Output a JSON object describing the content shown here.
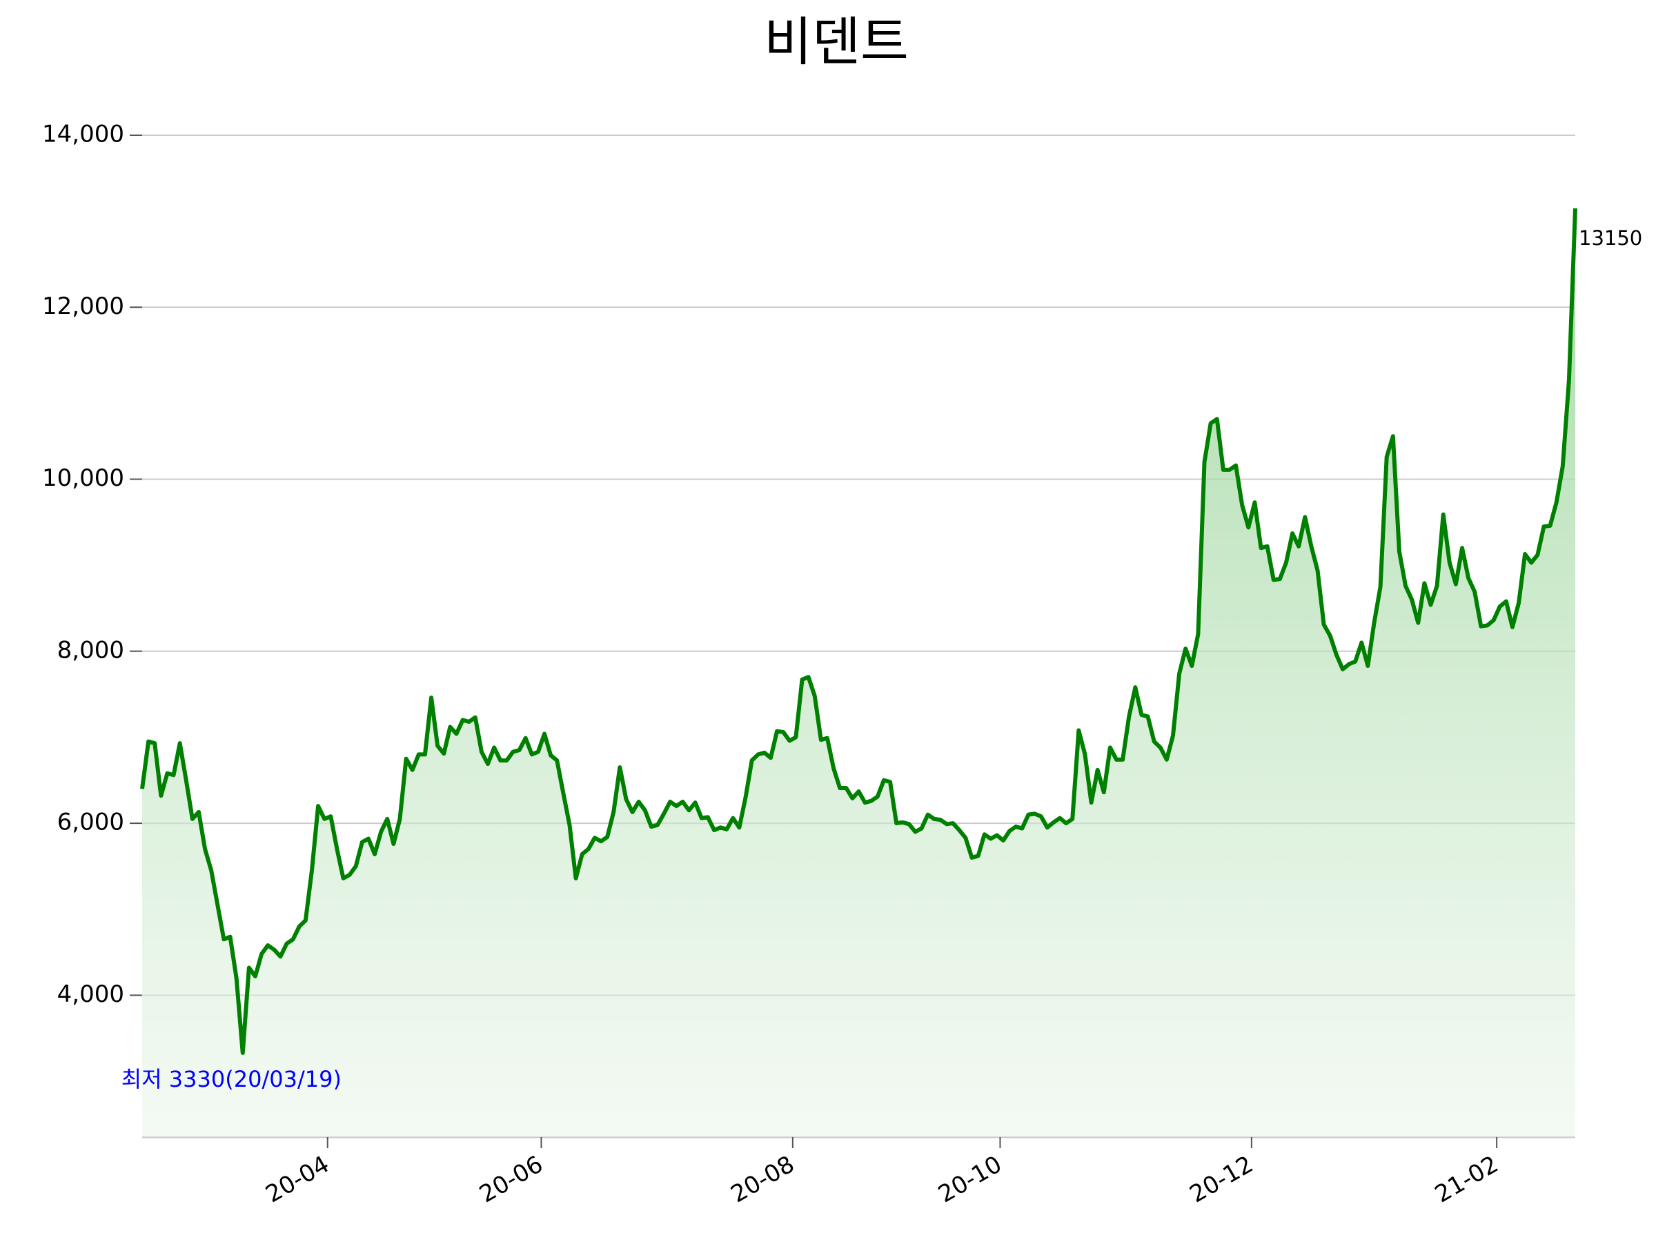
{
  "chart_data": {
    "type": "line",
    "title": "비덴트",
    "x": [
      "20-02",
      "20-02",
      "20-02",
      "20-02",
      "20-02",
      "20-02",
      "20-02",
      "20-02",
      "20-02",
      "20-03",
      "20-03",
      "20-03",
      "20-03",
      "20-03",
      "20-03",
      "20-03",
      "20-03",
      "20-03",
      "20-03",
      "20-03",
      "20-03",
      "20-03",
      "20-03",
      "20-03",
      "20-03",
      "20-03",
      "20-03",
      "20-03",
      "20-03",
      "20-03",
      "20-04",
      "20-04",
      "20-04",
      "20-04",
      "20-04",
      "20-04",
      "20-04",
      "20-04",
      "20-04",
      "20-04",
      "20-04",
      "20-04",
      "20-04",
      "20-04",
      "20-04",
      "20-04",
      "20-04",
      "20-05",
      "20-05",
      "20-05",
      "20-05",
      "20-05",
      "20-05",
      "20-05",
      "20-05",
      "20-05",
      "20-05",
      "20-05",
      "20-05",
      "20-05",
      "20-05",
      "20-05",
      "20-05",
      "20-05",
      "20-06",
      "20-06",
      "20-06",
      "20-06",
      "20-06",
      "20-06",
      "20-06",
      "20-06",
      "20-06",
      "20-06",
      "20-06",
      "20-06",
      "20-06",
      "20-06",
      "20-06",
      "20-06",
      "20-06",
      "20-06",
      "20-06",
      "20-06",
      "20-06",
      "20-07",
      "20-07",
      "20-07",
      "20-07",
      "20-07",
      "20-07",
      "20-07",
      "20-07",
      "20-07",
      "20-07",
      "20-07",
      "20-07",
      "20-07",
      "20-07",
      "20-07",
      "20-07",
      "20-07",
      "20-07",
      "20-07",
      "20-08",
      "20-08",
      "20-08",
      "20-08",
      "20-08",
      "20-08",
      "20-08",
      "20-08",
      "20-08",
      "20-08",
      "20-08",
      "20-08",
      "20-08",
      "20-08",
      "20-08",
      "20-08",
      "20-08",
      "20-09",
      "20-09",
      "20-09",
      "20-09",
      "20-09",
      "20-09",
      "20-09",
      "20-09",
      "20-09",
      "20-09",
      "20-09",
      "20-09",
      "20-09",
      "20-09",
      "20-09",
      "20-09",
      "20-10",
      "20-10",
      "20-10",
      "20-10",
      "20-10",
      "20-10",
      "20-10",
      "20-10",
      "20-10",
      "20-10",
      "20-10",
      "20-10",
      "20-10",
      "20-10",
      "20-10",
      "20-10",
      "20-10",
      "20-10",
      "20-10",
      "20-11",
      "20-11",
      "20-11",
      "20-11",
      "20-11",
      "20-11",
      "20-11",
      "20-11",
      "20-11",
      "20-11",
      "20-11",
      "20-11",
      "20-11",
      "20-11",
      "20-11",
      "20-11",
      "20-11",
      "20-11",
      "20-11",
      "20-11",
      "20-11",
      "20-12",
      "20-12",
      "20-12",
      "20-12",
      "20-12",
      "20-12",
      "20-12",
      "20-12",
      "20-12",
      "20-12",
      "20-12",
      "20-12",
      "20-12",
      "20-12",
      "20-12",
      "20-12",
      "20-12",
      "21-01",
      "21-01",
      "21-01",
      "21-01",
      "21-01",
      "21-01",
      "21-01",
      "21-01",
      "21-01",
      "21-01",
      "21-01",
      "21-01",
      "21-01",
      "21-01",
      "21-01",
      "21-01",
      "21-01",
      "21-01",
      "21-01",
      "21-01",
      "21-01",
      "21-01",
      "21-02",
      "21-02",
      "21-02",
      "21-02",
      "21-02",
      "21-02",
      "21-02",
      "21-02",
      "21-02",
      "21-02",
      "21-02",
      "21-02",
      "21-02"
    ],
    "series": [
      {
        "color": "#008000",
        "values": [
          6400,
          6950,
          6930,
          6320,
          6580,
          6560,
          6930,
          6500,
          6050,
          6130,
          5700,
          5450,
          5050,
          4650,
          4680,
          4200,
          3330,
          4320,
          4220,
          4480,
          4580,
          4530,
          4450,
          4600,
          4650,
          4800,
          4870,
          5450,
          6200,
          6050,
          6080,
          5700,
          5360,
          5400,
          5500,
          5780,
          5820,
          5640,
          5900,
          6050,
          5760,
          6050,
          6750,
          6620,
          6800,
          6800,
          7460,
          6900,
          6810,
          7120,
          7040,
          7200,
          7180,
          7230,
          6830,
          6690,
          6880,
          6730,
          6730,
          6830,
          6850,
          6990,
          6800,
          6830,
          7040,
          6790,
          6730,
          6350,
          5980,
          5360,
          5640,
          5700,
          5830,
          5790,
          5840,
          6130,
          6650,
          6280,
          6130,
          6250,
          6150,
          5960,
          5980,
          6110,
          6250,
          6200,
          6250,
          6150,
          6240,
          6060,
          6070,
          5920,
          5950,
          5930,
          6060,
          5950,
          6300,
          6730,
          6800,
          6820,
          6760,
          7070,
          7060,
          6960,
          7000,
          7670,
          7700,
          7480,
          6970,
          6990,
          6640,
          6410,
          6410,
          6290,
          6370,
          6240,
          6260,
          6310,
          6500,
          6480,
          6000,
          6010,
          5990,
          5900,
          5940,
          6100,
          6050,
          6040,
          5990,
          6000,
          5920,
          5830,
          5600,
          5620,
          5870,
          5820,
          5860,
          5800,
          5910,
          5960,
          5940,
          6100,
          6110,
          6080,
          5950,
          6010,
          6060,
          6000,
          6050,
          7080,
          6800,
          6240,
          6620,
          6360,
          6880,
          6740,
          6740,
          7240,
          7580,
          7260,
          7240,
          6950,
          6880,
          6740,
          7020,
          7740,
          8030,
          7830,
          8200,
          10200,
          10650,
          10700,
          10110,
          10110,
          10160,
          9700,
          9440,
          9730,
          9200,
          9220,
          8830,
          8840,
          9030,
          9370,
          9220,
          9560,
          9220,
          8940,
          8310,
          8180,
          7960,
          7790,
          7850,
          7880,
          8100,
          7830,
          8330,
          8750,
          10260,
          10500,
          9160,
          8760,
          8600,
          8330,
          8790,
          8540,
          8760,
          9590,
          9030,
          8780,
          9200,
          8850,
          8690,
          8290,
          8300,
          8360,
          8520,
          8580,
          8280,
          8560,
          9130,
          9030,
          9120,
          9450,
          9460,
          9730,
          10150,
          11150,
          13150
        ]
      }
    ],
    "xticks": [
      "20-04",
      "20-06",
      "20-08",
      "20-10",
      "20-12",
      "21-02"
    ],
    "ylim": [
      2350,
      14000
    ],
    "yticks": [
      {
        "value": 4000,
        "label": "4,000"
      },
      {
        "value": 6000,
        "label": "6,000"
      },
      {
        "value": 8000,
        "label": "8,000"
      },
      {
        "value": 10000,
        "label": "10,000"
      },
      {
        "value": 12000,
        "label": "12,000"
      },
      {
        "value": 14000,
        "label": "14,000"
      }
    ],
    "grid": true,
    "annotations": [
      {
        "text": "최저 3330(20/03/19)",
        "color": "#0000ff"
      },
      {
        "text": "13150",
        "color": "#000000"
      }
    ]
  }
}
